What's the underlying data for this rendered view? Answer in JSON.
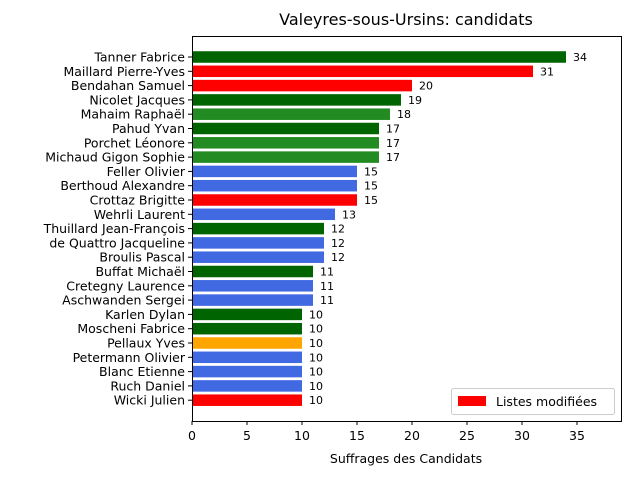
{
  "chart_data": {
    "type": "bar",
    "orientation": "horizontal",
    "title": "Valeyres-sous-Ursins: candidats",
    "xlabel": "Suffrages des Candidats",
    "ylabel": "",
    "xlim": [
      0,
      39
    ],
    "xticks": [
      "0",
      "5",
      "10",
      "15",
      "20",
      "25",
      "30",
      "35"
    ],
    "legend": {
      "position": "bottom-right",
      "entries": [
        {
          "label": "Listes modifiées",
          "color": "#ff0000"
        }
      ]
    },
    "colors": {
      "dark_green": "#006400",
      "green": "#228b22",
      "red": "#ff0000",
      "blue": "#4169e1",
      "orange": "#ffa500"
    },
    "bars": [
      {
        "name": "Tanner Fabrice",
        "value": 34,
        "color": "#006400"
      },
      {
        "name": "Maillard Pierre-Yves",
        "value": 31,
        "color": "#ff0000"
      },
      {
        "name": "Bendahan Samuel",
        "value": 20,
        "color": "#ff0000"
      },
      {
        "name": "Nicolet Jacques",
        "value": 19,
        "color": "#006400"
      },
      {
        "name": "Mahaim Raphaël",
        "value": 18,
        "color": "#228b22"
      },
      {
        "name": "Pahud Yvan",
        "value": 17,
        "color": "#006400"
      },
      {
        "name": "Porchet Léonore",
        "value": 17,
        "color": "#228b22"
      },
      {
        "name": "Michaud Gigon Sophie",
        "value": 17,
        "color": "#228b22"
      },
      {
        "name": "Feller Olivier",
        "value": 15,
        "color": "#4169e1"
      },
      {
        "name": "Berthoud Alexandre",
        "value": 15,
        "color": "#4169e1"
      },
      {
        "name": "Crottaz Brigitte",
        "value": 15,
        "color": "#ff0000"
      },
      {
        "name": "Wehrli Laurent",
        "value": 13,
        "color": "#4169e1"
      },
      {
        "name": "Thuillard Jean-François",
        "value": 12,
        "color": "#006400"
      },
      {
        "name": "de Quattro Jacqueline",
        "value": 12,
        "color": "#4169e1"
      },
      {
        "name": "Broulis Pascal",
        "value": 12,
        "color": "#4169e1"
      },
      {
        "name": "Buffat Michaël",
        "value": 11,
        "color": "#006400"
      },
      {
        "name": "Cretegny Laurence",
        "value": 11,
        "color": "#4169e1"
      },
      {
        "name": "Aschwanden Sergei",
        "value": 11,
        "color": "#4169e1"
      },
      {
        "name": "Karlen Dylan",
        "value": 10,
        "color": "#006400"
      },
      {
        "name": "Moscheni Fabrice",
        "value": 10,
        "color": "#006400"
      },
      {
        "name": "Pellaux Yves",
        "value": 10,
        "color": "#ffa500"
      },
      {
        "name": "Petermann Olivier",
        "value": 10,
        "color": "#4169e1"
      },
      {
        "name": "Blanc Etienne",
        "value": 10,
        "color": "#4169e1"
      },
      {
        "name": "Ruch Daniel",
        "value": 10,
        "color": "#4169e1"
      },
      {
        "name": "Wicki Julien",
        "value": 10,
        "color": "#ff0000"
      }
    ]
  }
}
